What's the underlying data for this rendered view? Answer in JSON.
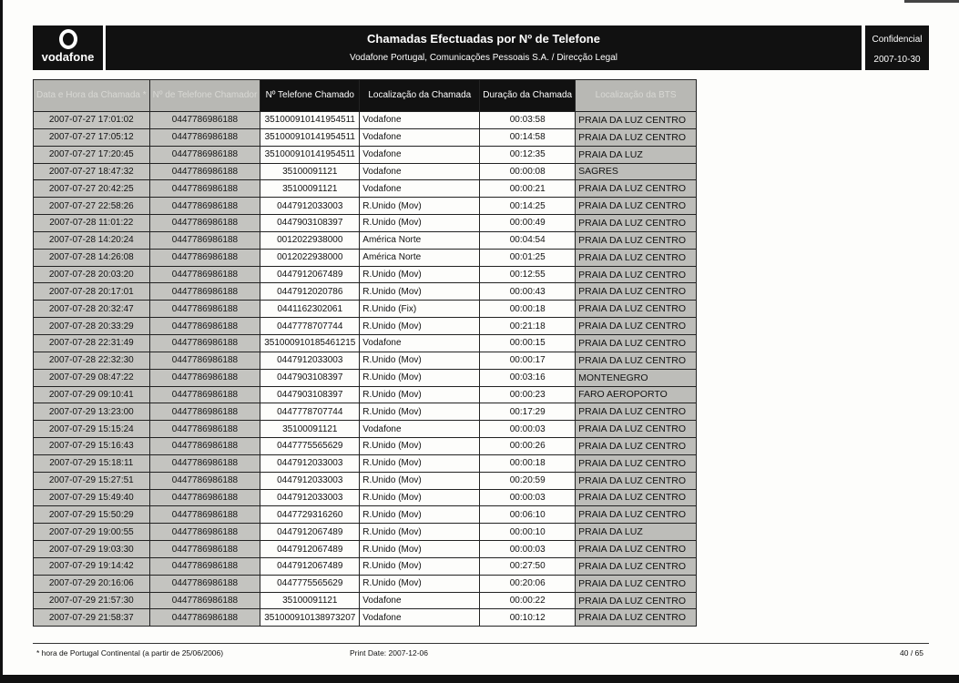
{
  "header": {
    "logo_text": "vodafone",
    "title": "Chamadas Efectuadas por Nº de Telefone",
    "subtitle": "Vodafone Portugal, Comunicações Pessoais S.A.  /  Direcção Legal",
    "confidential": "Confidencial",
    "date": "2007-10-30"
  },
  "table": {
    "columns": [
      "Data e Hora da Chamada *",
      "Nº de Telefone Chamador",
      "Nº Telefone Chamado",
      "Localização da Chamada",
      "Duração da Chamada",
      "Localização da BTS"
    ],
    "rows": [
      [
        "2007-07-27 17:01:02",
        "0447786986188",
        "351000910141954511",
        "Vodafone",
        "00:03:58",
        "PRAIA DA LUZ CENTRO"
      ],
      [
        "2007-07-27 17:05:12",
        "0447786986188",
        "351000910141954511",
        "Vodafone",
        "00:14:58",
        "PRAIA DA LUZ CENTRO"
      ],
      [
        "2007-07-27 17:20:45",
        "0447786986188",
        "351000910141954511",
        "Vodafone",
        "00:12:35",
        "PRAIA DA LUZ"
      ],
      [
        "2007-07-27 18:47:32",
        "0447786986188",
        "35100091121",
        "Vodafone",
        "00:00:08",
        "SAGRES"
      ],
      [
        "2007-07-27 20:42:25",
        "0447786986188",
        "35100091121",
        "Vodafone",
        "00:00:21",
        "PRAIA DA LUZ CENTRO"
      ],
      [
        "2007-07-27 22:58:26",
        "0447786986188",
        "0447912033003",
        "R.Unido (Mov)",
        "00:14:25",
        "PRAIA DA LUZ CENTRO"
      ],
      [
        "2007-07-28 11:01:22",
        "0447786986188",
        "0447903108397",
        "R.Unido (Mov)",
        "00:00:49",
        "PRAIA DA LUZ CENTRO"
      ],
      [
        "2007-07-28 14:20:24",
        "0447786986188",
        "0012022938000",
        "América Norte",
        "00:04:54",
        "PRAIA DA LUZ CENTRO"
      ],
      [
        "2007-07-28 14:26:08",
        "0447786986188",
        "0012022938000",
        "América Norte",
        "00:01:25",
        "PRAIA DA LUZ CENTRO"
      ],
      [
        "2007-07-28 20:03:20",
        "0447786986188",
        "0447912067489",
        "R.Unido (Mov)",
        "00:12:55",
        "PRAIA DA LUZ CENTRO"
      ],
      [
        "2007-07-28 20:17:01",
        "0447786986188",
        "0447912020786",
        "R.Unido (Mov)",
        "00:00:43",
        "PRAIA DA LUZ CENTRO"
      ],
      [
        "2007-07-28 20:32:47",
        "0447786986188",
        "0441162302061",
        "R.Unido (Fix)",
        "00:00:18",
        "PRAIA DA LUZ CENTRO"
      ],
      [
        "2007-07-28 20:33:29",
        "0447786986188",
        "0447778707744",
        "R.Unido (Mov)",
        "00:21:18",
        "PRAIA DA LUZ CENTRO"
      ],
      [
        "2007-07-28 22:31:49",
        "0447786986188",
        "351000910185461215",
        "Vodafone",
        "00:00:15",
        "PRAIA DA LUZ CENTRO"
      ],
      [
        "2007-07-28 22:32:30",
        "0447786986188",
        "0447912033003",
        "R.Unido (Mov)",
        "00:00:17",
        "PRAIA DA LUZ CENTRO"
      ],
      [
        "2007-07-29 08:47:22",
        "0447786986188",
        "0447903108397",
        "R.Unido (Mov)",
        "00:03:16",
        "MONTENEGRO"
      ],
      [
        "2007-07-29 09:10:41",
        "0447786986188",
        "0447903108397",
        "R.Unido (Mov)",
        "00:00:23",
        "FARO AEROPORTO"
      ],
      [
        "2007-07-29 13:23:00",
        "0447786986188",
        "0447778707744",
        "R.Unido (Mov)",
        "00:17:29",
        "PRAIA DA LUZ CENTRO"
      ],
      [
        "2007-07-29 15:15:24",
        "0447786986188",
        "35100091121",
        "Vodafone",
        "00:00:03",
        "PRAIA DA LUZ CENTRO"
      ],
      [
        "2007-07-29 15:16:43",
        "0447786986188",
        "0447775565629",
        "R.Unido (Mov)",
        "00:00:26",
        "PRAIA DA LUZ CENTRO"
      ],
      [
        "2007-07-29 15:18:11",
        "0447786986188",
        "0447912033003",
        "R.Unido (Mov)",
        "00:00:18",
        "PRAIA DA LUZ CENTRO"
      ],
      [
        "2007-07-29 15:27:51",
        "0447786986188",
        "0447912033003",
        "R.Unido (Mov)",
        "00:20:59",
        "PRAIA DA LUZ CENTRO"
      ],
      [
        "2007-07-29 15:49:40",
        "0447786986188",
        "0447912033003",
        "R.Unido (Mov)",
        "00:00:03",
        "PRAIA DA LUZ CENTRO"
      ],
      [
        "2007-07-29 15:50:29",
        "0447786986188",
        "0447729316260",
        "R.Unido (Mov)",
        "00:06:10",
        "PRAIA DA LUZ CENTRO"
      ],
      [
        "2007-07-29 19:00:55",
        "0447786986188",
        "0447912067489",
        "R.Unido (Mov)",
        "00:00:10",
        "PRAIA DA LUZ"
      ],
      [
        "2007-07-29 19:03:30",
        "0447786986188",
        "0447912067489",
        "R.Unido (Mov)",
        "00:00:03",
        "PRAIA DA LUZ CENTRO"
      ],
      [
        "2007-07-29 19:14:42",
        "0447786986188",
        "0447912067489",
        "R.Unido (Mov)",
        "00:27:50",
        "PRAIA DA LUZ CENTRO"
      ],
      [
        "2007-07-29 20:16:06",
        "0447786986188",
        "0447775565629",
        "R.Unido (Mov)",
        "00:20:06",
        "PRAIA DA LUZ CENTRO"
      ],
      [
        "2007-07-29 21:57:30",
        "0447786986188",
        "35100091121",
        "Vodafone",
        "00:00:22",
        "PRAIA DA LUZ CENTRO"
      ],
      [
        "2007-07-29 21:58:37",
        "0447786986188",
        "351000910138973207",
        "Vodafone",
        "00:10:12",
        "PRAIA DA LUZ CENTRO"
      ]
    ]
  },
  "footer": {
    "note": "* hora de Portugal Continental (a partir de 25/06/2006)",
    "print_date": "Print Date:  2007-12-06",
    "page": "40 / 65"
  }
}
